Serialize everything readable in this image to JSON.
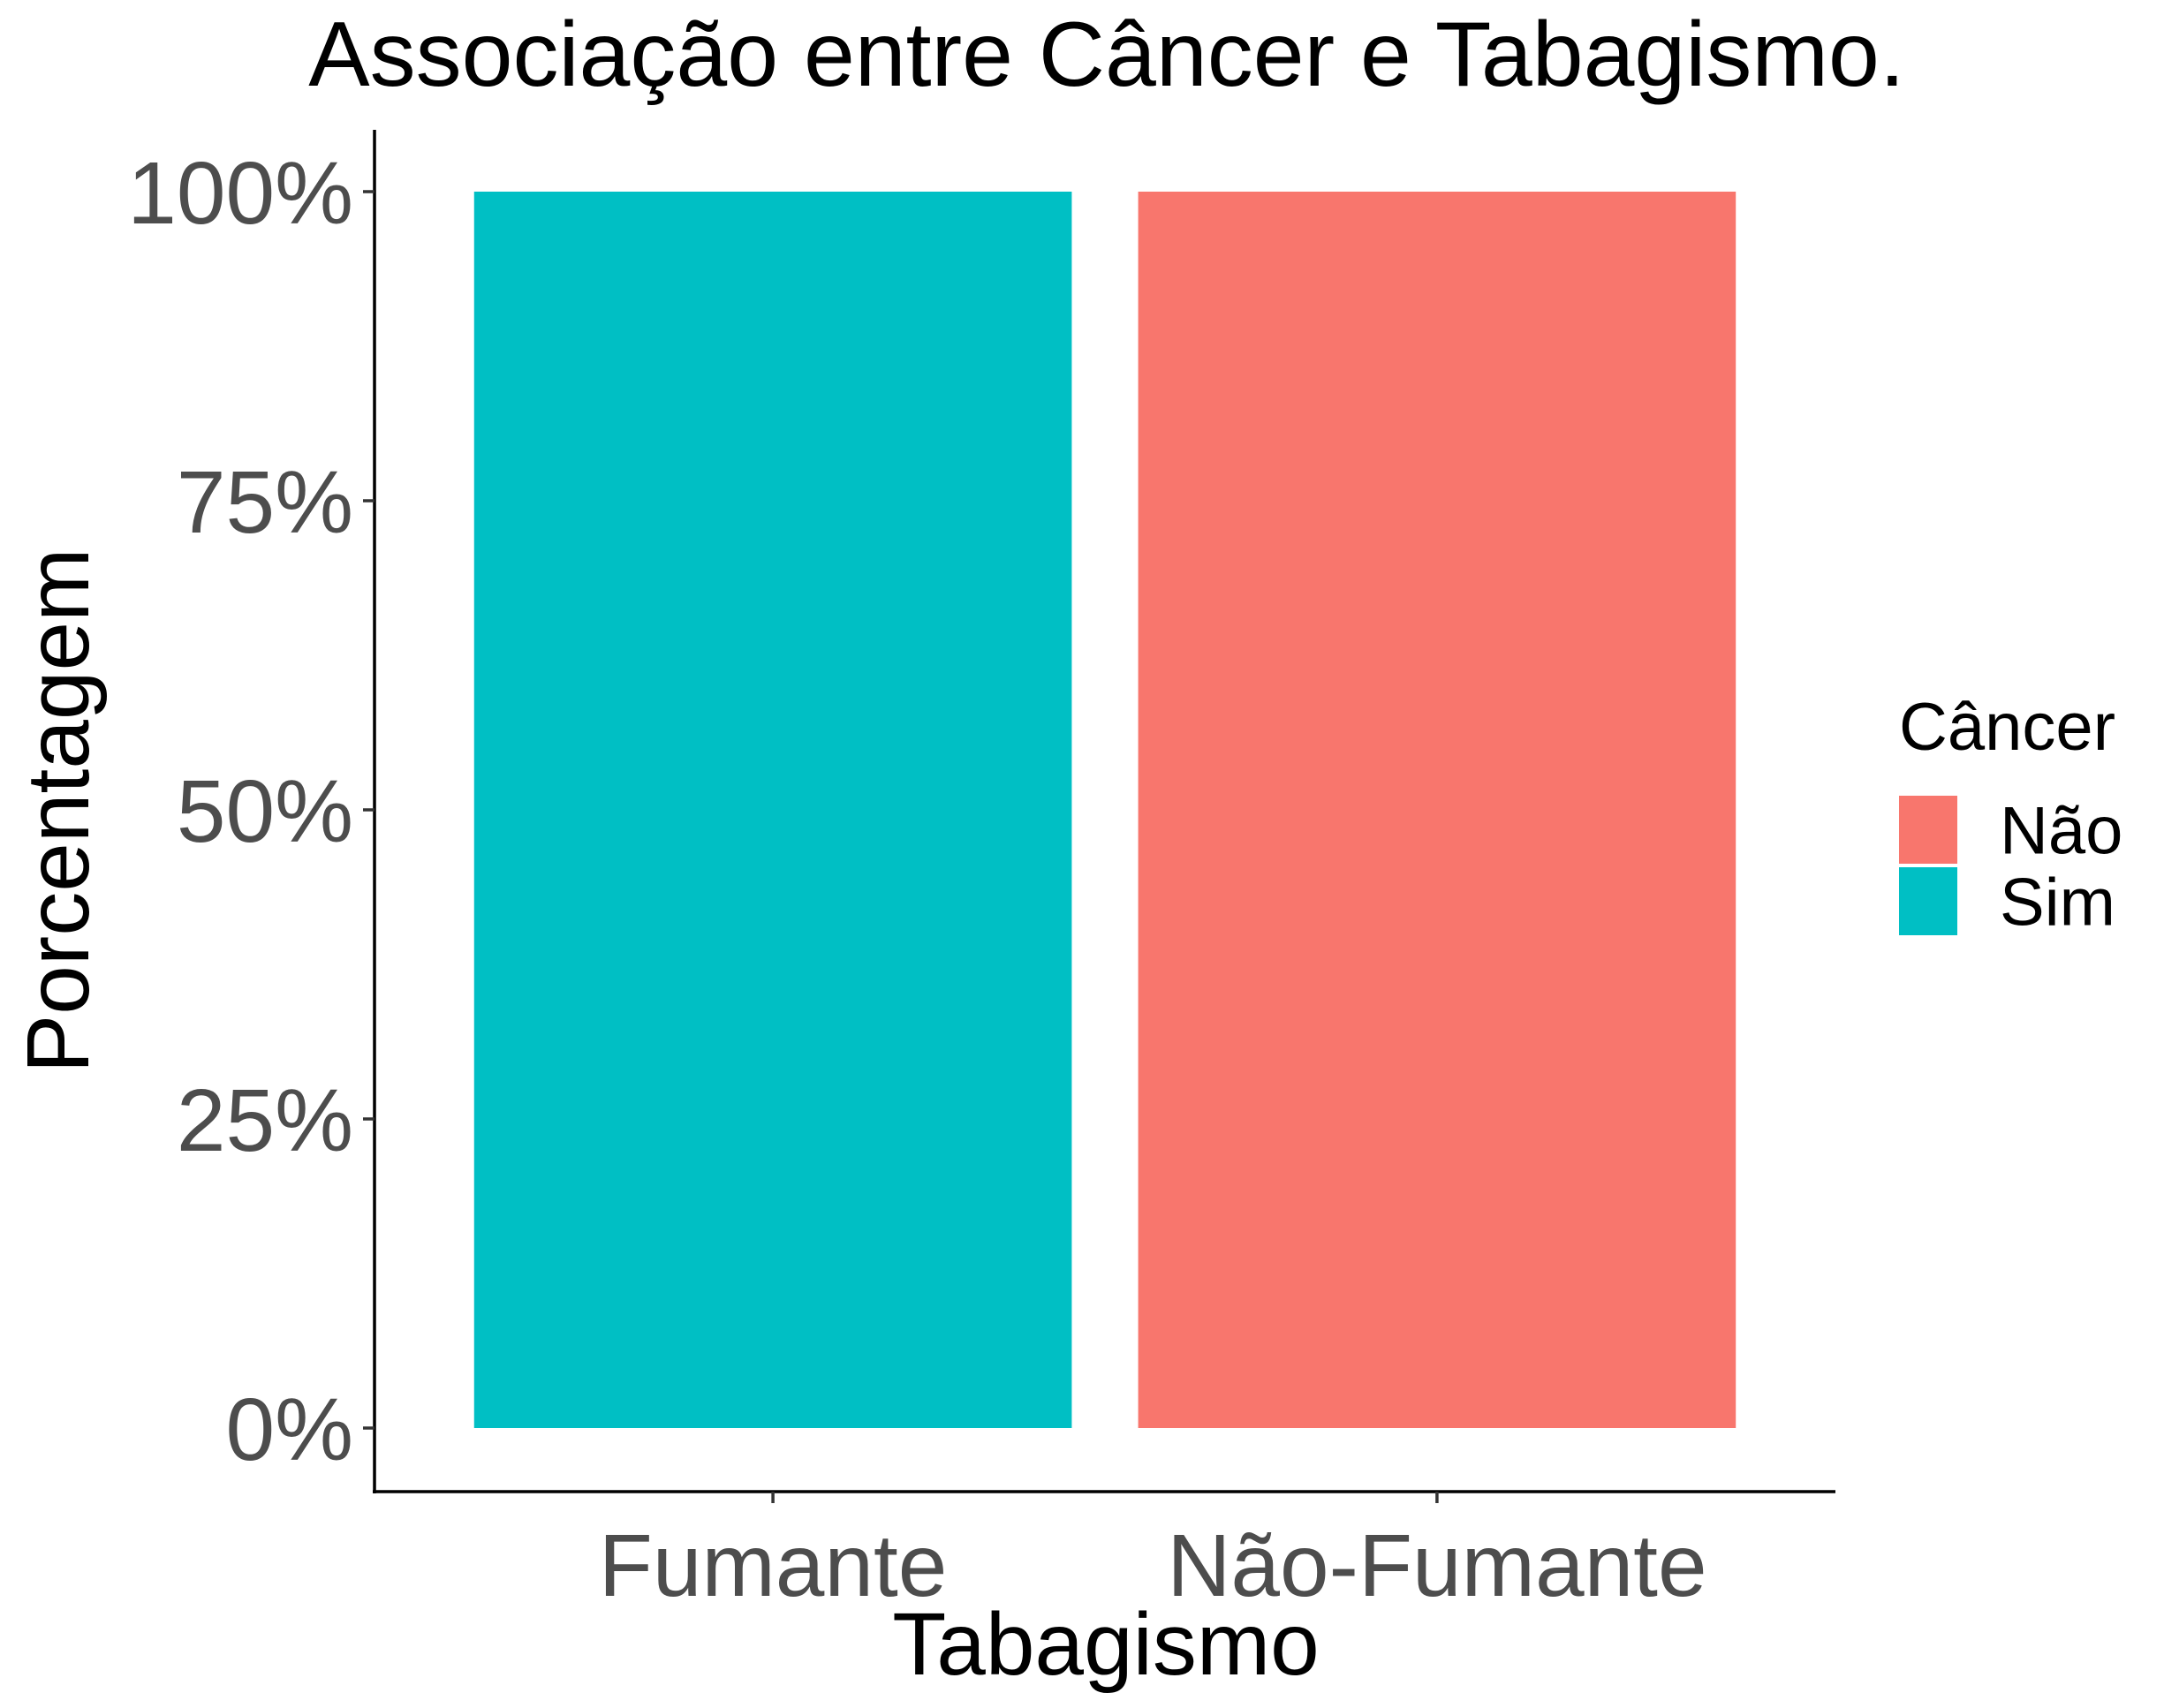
{
  "chart_data": {
    "type": "bar",
    "stacked": true,
    "percent_scale": true,
    "title": "Associação entre Câncer e Tabagismo.",
    "xlabel": "Tabagismo",
    "ylabel": "Porcentagem",
    "categories": [
      "Fumante",
      "Não-Fumante"
    ],
    "series": [
      {
        "name": "Não",
        "color": "#F8766D",
        "values": [
          0,
          100
        ]
      },
      {
        "name": "Sim",
        "color": "#00BFC4",
        "values": [
          100,
          0
        ]
      }
    ],
    "ylim": [
      0,
      100
    ],
    "yticks": [
      0,
      25,
      50,
      75,
      100
    ],
    "ytick_labels": [
      "0%",
      "25%",
      "50%",
      "75%",
      "100%"
    ],
    "grid": false,
    "legend": {
      "title": "Câncer",
      "position": "right",
      "entries": [
        "Não",
        "Sim"
      ]
    }
  }
}
